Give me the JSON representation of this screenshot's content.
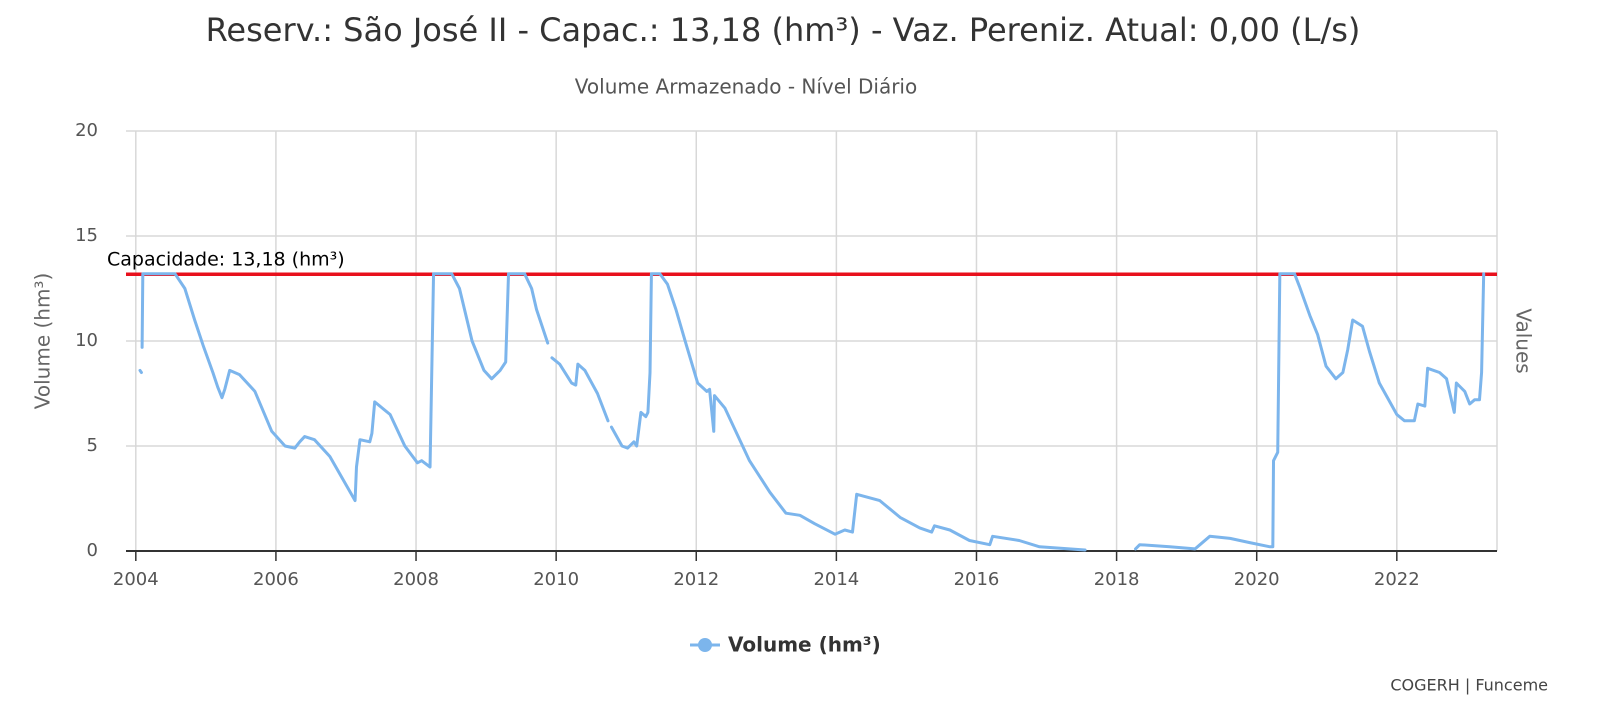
{
  "chart_data": {
    "type": "line",
    "title": "Reserv.: São José II - Capac.: 13,18 (hm³) - Vaz. Pereniz. Atual: 0,00 (L/s)",
    "subtitle": "Volume Armazenado - Nível Diário",
    "y_label": "Volume (hm³)",
    "y2_label": "Values",
    "credits": "COGERH | Funceme",
    "xlim": [
      2003.86,
      2023.43
    ],
    "xticks": [
      2004,
      2006,
      2008,
      2010,
      2012,
      2014,
      2016,
      2018,
      2020,
      2022
    ],
    "ylim": [
      0,
      20
    ],
    "yticks": [
      0,
      5,
      10,
      15,
      20
    ],
    "grid": true,
    "plot_lines": [
      {
        "value": 13.18,
        "label": "Capacidade: 13,18 (hm³)",
        "color": "#e8101c"
      }
    ],
    "x": [
      2004.06,
      2004.08,
      null,
      2004.09,
      2004.1,
      2004.56,
      2004.7,
      2004.84,
      2004.96,
      2005.1,
      2005.17,
      2005.23,
      2005.27,
      2005.34,
      2005.48,
      2005.7,
      2005.94,
      2006.13,
      2006.27,
      2006.34,
      2006.41,
      2006.55,
      2006.77,
      2007.13,
      2007.15,
      2007.2,
      2007.34,
      2007.37,
      2007.41,
      2007.63,
      2007.84,
      2008.02,
      2008.08,
      2008.2,
      2008.25,
      2008.51,
      2008.62,
      2008.8,
      2008.97,
      2009.08,
      2009.2,
      2009.28,
      2009.32,
      2009.55,
      2009.65,
      2009.72,
      2009.88,
      null,
      2009.94,
      2010.05,
      2010.22,
      2010.28,
      2010.31,
      2010.41,
      2010.59,
      2010.74,
      null,
      2010.79,
      2010.94,
      2011.02,
      2011.11,
      2011.15,
      2011.21,
      2011.28,
      2011.31,
      2011.34,
      2011.36,
      2011.48,
      2011.59,
      2011.71,
      2011.85,
      2012.02,
      2012.15,
      2012.19,
      2012.25,
      2012.26,
      2012.41,
      2012.55,
      2012.76,
      2013.05,
      2013.28,
      2013.48,
      2013.69,
      2013.98,
      2014.12,
      2014.23,
      2014.29,
      2014.62,
      2014.91,
      2015.19,
      2015.36,
      2015.4,
      2015.62,
      2015.9,
      2016.19,
      2016.23,
      2016.61,
      2016.9,
      2017.55,
      null,
      2018.27,
      2018.33,
      2018.76,
      2019.12,
      2019.19,
      2019.33,
      2019.62,
      2019.9,
      2020.19,
      2020.23,
      2020.24,
      2020.3,
      2020.33,
      2020.54,
      2020.61,
      2020.76,
      2020.87,
      2020.99,
      2021.13,
      2021.23,
      2021.3,
      2021.37,
      2021.51,
      2021.61,
      2021.75,
      2022.0,
      2022.11,
      2022.25,
      2022.3,
      2022.4,
      2022.44,
      2022.61,
      2022.71,
      2022.82,
      2022.85,
      2022.97,
      2023.04,
      2023.11,
      2023.18,
      2023.21,
      2023.24
    ],
    "series": [
      {
        "name": "Volume (hm³)",
        "color": "#7cb5ec",
        "values": [
          8.6,
          8.5,
          null,
          9.7,
          13.2,
          13.2,
          12.5,
          11.0,
          9.8,
          8.5,
          7.8,
          7.3,
          7.7,
          8.6,
          8.4,
          7.6,
          5.7,
          5.0,
          4.9,
          5.2,
          5.45,
          5.3,
          4.5,
          2.4,
          4.0,
          5.3,
          5.2,
          5.6,
          7.1,
          6.5,
          5.0,
          4.2,
          4.3,
          4.0,
          13.2,
          13.2,
          12.5,
          10.0,
          8.6,
          8.2,
          8.6,
          9.0,
          13.2,
          13.2,
          12.5,
          11.5,
          9.9,
          null,
          9.2,
          8.9,
          8.0,
          7.9,
          8.9,
          8.6,
          7.5,
          6.2,
          null,
          5.9,
          5.0,
          4.9,
          5.2,
          5.0,
          6.6,
          6.4,
          6.6,
          8.5,
          13.2,
          13.2,
          12.7,
          11.5,
          9.9,
          8.0,
          7.6,
          7.7,
          5.7,
          7.4,
          6.8,
          5.8,
          4.3,
          2.8,
          1.8,
          1.7,
          1.3,
          0.8,
          1.0,
          0.9,
          2.7,
          2.4,
          1.6,
          1.1,
          0.9,
          1.2,
          1.0,
          0.5,
          0.3,
          0.7,
          0.5,
          0.2,
          0.05,
          null,
          0.1,
          0.3,
          0.2,
          0.1,
          0.3,
          0.7,
          0.6,
          0.4,
          0.2,
          0.2,
          4.3,
          4.7,
          13.2,
          13.2,
          12.6,
          11.2,
          10.3,
          8.8,
          8.2,
          8.5,
          9.6,
          11.0,
          10.7,
          9.5,
          8.0,
          6.5,
          6.2,
          6.2,
          7.0,
          6.9,
          8.7,
          8.5,
          8.2,
          6.6,
          8.0,
          7.6,
          7.0,
          7.2,
          7.2,
          8.5,
          13.2
        ]
      }
    ]
  }
}
